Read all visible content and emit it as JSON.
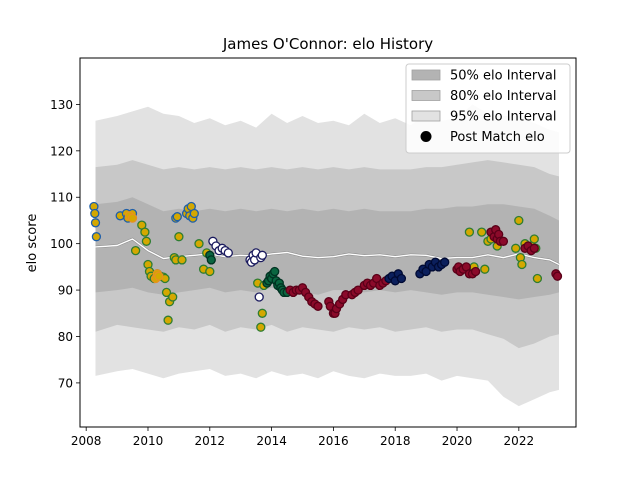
{
  "chart_data": {
    "type": "scatter",
    "title": "James O'Connor: elo History",
    "xlabel": "",
    "ylabel": "elo score",
    "xlim": [
      2007.8,
      2023.85
    ],
    "ylim": [
      60.5,
      140
    ],
    "x_ticks": [
      2008,
      2010,
      2012,
      2014,
      2016,
      2018,
      2020,
      2022
    ],
    "y_ticks": [
      70,
      80,
      90,
      100,
      110,
      120,
      130
    ],
    "legend_position": "top-right",
    "legend": [
      {
        "label": "50% elo Interval",
        "color": "#b3b3b3"
      },
      {
        "label": "80% elo Interval",
        "color": "#c8c8c8"
      },
      {
        "label": "95% elo Interval",
        "color": "#e2e2e2"
      },
      {
        "label": "Post Match elo",
        "color": "#000000"
      }
    ],
    "bands": {
      "x": [
        2008.3,
        2009.0,
        2009.5,
        2010.0,
        2010.5,
        2011.0,
        2011.5,
        2012.0,
        2012.5,
        2013.0,
        2013.5,
        2014.0,
        2014.5,
        2015.0,
        2015.5,
        2016.0,
        2016.5,
        2017.0,
        2017.5,
        2018.0,
        2018.5,
        2019.0,
        2019.5,
        2020.0,
        2020.5,
        2021.0,
        2021.5,
        2022.0,
        2022.5,
        2023.0,
        2023.3
      ],
      "center": [
        99.3,
        99.6,
        101.0,
        98.5,
        96.8,
        97.2,
        97.5,
        97.8,
        97.2,
        97.5,
        97.3,
        97.8,
        98.1,
        97.3,
        97.0,
        97.2,
        97.8,
        97.4,
        97.6,
        97.2,
        97.6,
        97.5,
        96.8,
        97.0,
        97.0,
        97.6,
        97.0,
        97.8,
        97.0,
        96.5,
        95.5
      ],
      "p95_low": [
        71.5,
        72.5,
        73.0,
        72.0,
        71.0,
        72.0,
        72.5,
        73.0,
        71.5,
        72.0,
        71.0,
        72.5,
        71.5,
        72.0,
        71.0,
        72.5,
        71.5,
        71.0,
        72.0,
        71.5,
        71.5,
        72.0,
        70.5,
        71.5,
        71.0,
        70.5,
        67.0,
        65.0,
        66.5,
        68.0,
        68.5
      ],
      "p80_low": [
        81.0,
        82.5,
        82.0,
        81.5,
        81.0,
        82.0,
        81.5,
        82.5,
        81.0,
        82.0,
        81.5,
        82.5,
        81.0,
        82.0,
        81.5,
        81.0,
        82.0,
        81.5,
        82.0,
        81.0,
        81.5,
        82.0,
        81.0,
        81.5,
        81.5,
        80.5,
        79.5,
        77.5,
        78.5,
        80.0,
        80.5
      ],
      "p50_low": [
        89.5,
        90.0,
        90.5,
        89.5,
        89.0,
        89.5,
        90.0,
        90.5,
        89.5,
        90.0,
        89.5,
        90.5,
        90.0,
        89.5,
        89.0,
        90.0,
        90.0,
        89.5,
        90.0,
        89.5,
        90.0,
        89.5,
        89.0,
        89.5,
        89.5,
        89.0,
        88.5,
        88.0,
        88.5,
        89.0,
        89.5
      ],
      "p50_high": [
        108.5,
        109.0,
        110.0,
        108.5,
        107.0,
        107.5,
        107.0,
        107.5,
        107.0,
        107.5,
        107.0,
        107.5,
        107.0,
        107.5,
        107.0,
        107.5,
        107.0,
        107.5,
        107.0,
        107.0,
        107.0,
        107.5,
        107.5,
        108.0,
        108.0,
        108.5,
        108.5,
        108.0,
        107.5,
        106.0,
        105.0
      ],
      "p80_high": [
        116.5,
        117.0,
        118.0,
        117.0,
        116.0,
        116.5,
        116.0,
        116.5,
        116.0,
        116.5,
        116.0,
        116.5,
        116.0,
        116.5,
        116.0,
        116.5,
        116.0,
        116.5,
        116.0,
        116.0,
        116.0,
        116.5,
        116.5,
        117.0,
        117.5,
        118.0,
        117.5,
        117.0,
        116.5,
        115.0,
        114.5
      ],
      "p95_high": [
        126.5,
        127.5,
        128.5,
        129.5,
        128.0,
        127.5,
        126.0,
        127.0,
        125.5,
        126.5,
        125.0,
        128.0,
        126.0,
        127.5,
        126.0,
        126.5,
        125.5,
        128.0,
        126.0,
        127.0,
        125.5,
        128.0,
        126.5,
        127.0,
        130.0,
        128.0,
        127.5,
        127.5,
        126.0,
        124.5,
        124.0
      ]
    },
    "team_colors": {
      "gold_blue": {
        "fill": "#d4a800",
        "edge": "#1f5fa8"
      },
      "gold_green": {
        "fill": "#d4a800",
        "edge": "#2e7d32"
      },
      "white_navy": {
        "fill": "#ffffff",
        "edge": "#1a1a5e"
      },
      "green_black": {
        "fill": "#0a6640",
        "edge": "#003322"
      },
      "maroon": {
        "fill": "#8b0a2a",
        "edge": "#5a0018"
      },
      "navy": {
        "fill": "#0b1f5c",
        "edge": "#000a33"
      },
      "gold_orange": {
        "fill": "#d4a800",
        "edge": "#e89020"
      }
    },
    "series": [
      {
        "team": "gold_blue",
        "x": [
          2008.25,
          2008.28,
          2008.3,
          2008.33,
          2009.1,
          2009.3,
          2009.35,
          2009.45,
          2009.5,
          2010.9,
          2010.95,
          2011.25,
          2011.3,
          2011.35,
          2011.4,
          2011.45,
          2011.5
        ],
        "y": [
          108.0,
          106.5,
          104.5,
          101.5,
          106.0,
          106.5,
          105.5,
          106.0,
          106.5,
          105.5,
          105.8,
          106.5,
          107.5,
          106.0,
          108.0,
          105.5,
          106.5
        ]
      },
      {
        "team": "gold_green",
        "x": [
          2009.6,
          2009.8,
          2009.9,
          2009.95,
          2010.0,
          2010.05,
          2010.1,
          2010.2,
          2010.3,
          2010.4,
          2010.5,
          2010.55,
          2010.6,
          2010.65,
          2010.7,
          2010.8,
          2010.85,
          2010.9,
          2011.0,
          2011.1,
          2011.65,
          2011.8,
          2011.9,
          2012.0,
          2013.55,
          2013.65,
          2013.7,
          2013.75,
          2020.1,
          2020.4,
          2020.55,
          2020.8,
          2020.9,
          2021.0,
          2021.1,
          2021.3,
          2021.9,
          2022.0,
          2022.05,
          2022.1,
          2022.2,
          2022.3,
          2022.4,
          2022.5,
          2022.55,
          2022.6
        ],
        "y": [
          98.5,
          104.0,
          102.5,
          100.5,
          95.5,
          94.0,
          93.0,
          92.5,
          93.5,
          93.0,
          92.8,
          92.5,
          89.5,
          83.5,
          87.5,
          88.5,
          97.0,
          96.5,
          101.5,
          96.5,
          100.0,
          94.5,
          98.0,
          94.0,
          91.5,
          82.0,
          85.0,
          91.0,
          94.5,
          102.5,
          95.0,
          102.5,
          94.5,
          100.5,
          101.0,
          99.5,
          99.0,
          105.0,
          97.0,
          95.5,
          100.0,
          99.5,
          99.5,
          101.0,
          99.0,
          92.5
        ]
      },
      {
        "team": "white_navy",
        "x": [
          2012.1,
          2012.2,
          2012.3,
          2012.4,
          2012.5,
          2012.6,
          2013.3,
          2013.35,
          2013.4,
          2013.45,
          2013.5,
          2013.6,
          2013.65,
          2013.7
        ],
        "y": [
          100.5,
          99.5,
          98.5,
          99.0,
          98.5,
          98.0,
          96.5,
          96.0,
          97.5,
          96.5,
          98.0,
          88.5,
          97.0,
          97.5
        ]
      },
      {
        "team": "green_black",
        "x": [
          2012.0,
          2012.05,
          2013.85,
          2013.9,
          2013.95,
          2014.0,
          2014.05,
          2014.1,
          2014.15,
          2014.2,
          2014.25,
          2014.3,
          2014.35,
          2014.4,
          2014.5
        ],
        "y": [
          97.5,
          96.5,
          91.5,
          92.0,
          93.0,
          92.5,
          93.5,
          94.0,
          92.0,
          91.0,
          91.5,
          90.5,
          90.0,
          89.5,
          89.5
        ]
      },
      {
        "team": "maroon",
        "x": [
          2014.6,
          2014.7,
          2014.8,
          2014.9,
          2015.0,
          2015.1,
          2015.2,
          2015.3,
          2015.4,
          2015.5,
          2015.85,
          2015.9,
          2016.0,
          2016.05,
          2016.1,
          2016.2,
          2016.3,
          2016.4,
          2016.6,
          2016.7,
          2016.8,
          2017.0,
          2017.1,
          2017.2,
          2017.3,
          2017.4,
          2017.5,
          2017.6,
          2017.7,
          2020.0,
          2020.05,
          2020.1,
          2020.2,
          2020.3,
          2020.4,
          2020.5,
          2020.6,
          2021.1,
          2021.2,
          2021.25,
          2021.3,
          2021.35,
          2021.4,
          2021.5,
          2022.2,
          2022.3,
          2022.4,
          2022.5,
          2023.2,
          2023.25
        ],
        "y": [
          90.0,
          89.5,
          90.0,
          90.0,
          90.5,
          89.5,
          88.5,
          87.5,
          87.0,
          86.5,
          87.5,
          86.5,
          85.0,
          85.0,
          86.0,
          87.0,
          88.0,
          89.0,
          89.0,
          89.5,
          90.0,
          91.0,
          91.5,
          91.0,
          91.5,
          92.5,
          91.0,
          91.5,
          92.0,
          94.5,
          95.0,
          94.0,
          94.5,
          95.0,
          93.5,
          93.5,
          94.0,
          102.5,
          101.5,
          103.0,
          101.0,
          102.0,
          100.5,
          100.5,
          99.0,
          99.5,
          98.5,
          99.0,
          93.5,
          93.0
        ]
      },
      {
        "team": "navy",
        "x": [
          2017.8,
          2017.9,
          2018.0,
          2018.1,
          2018.2,
          2018.8,
          2018.9,
          2019.0,
          2019.1,
          2019.2,
          2019.3,
          2019.4,
          2019.5,
          2019.6
        ],
        "y": [
          92.5,
          93.0,
          92.0,
          93.5,
          92.5,
          93.5,
          94.5,
          94.0,
          95.5,
          95.0,
          96.0,
          95.0,
          95.5,
          96.0
        ]
      },
      {
        "team": "gold_orange",
        "x": [
          2009.4,
          2009.5,
          2010.25,
          2010.3,
          2010.35
        ],
        "y": [
          106.0,
          105.5,
          92.5,
          93.5,
          93.0
        ]
      }
    ]
  }
}
